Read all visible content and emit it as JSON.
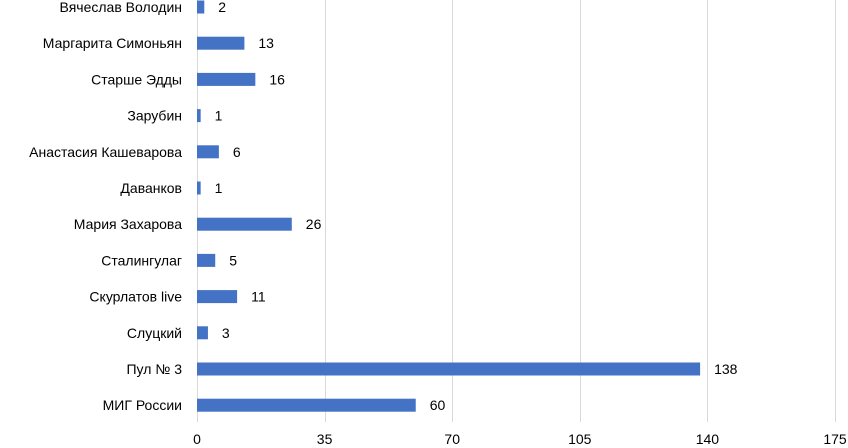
{
  "chart_data": {
    "type": "bar",
    "orientation": "horizontal",
    "categories": [
      "Вячеслав Володин",
      "Маргарита Симоньян",
      "Старше Эдды",
      "Зарубин",
      "Анастасия Кашеварова",
      "Даванков",
      "Мария Захарова",
      "Сталингулаг",
      "Скурлатов live",
      "Слуцкий",
      "Пул № 3",
      "МИГ России"
    ],
    "values": [
      2,
      13,
      16,
      1,
      6,
      1,
      26,
      5,
      11,
      3,
      138,
      60
    ],
    "value_labels": [
      "2",
      "13",
      "16",
      "1",
      "6",
      "1",
      "26",
      "5",
      "11",
      "3",
      "138",
      "60"
    ],
    "title": "",
    "xlabel": "",
    "ylabel": "",
    "xlim": [
      0,
      175
    ],
    "xticks": [
      0,
      35,
      70,
      105,
      140,
      175
    ],
    "xtick_labels": [
      "0",
      "35",
      "70",
      "105",
      "140",
      "175"
    ],
    "grid": true,
    "legend": "none",
    "bar_color": "#4472c4",
    "grid_color": "#d9d9d9",
    "text_color": "#000000"
  }
}
